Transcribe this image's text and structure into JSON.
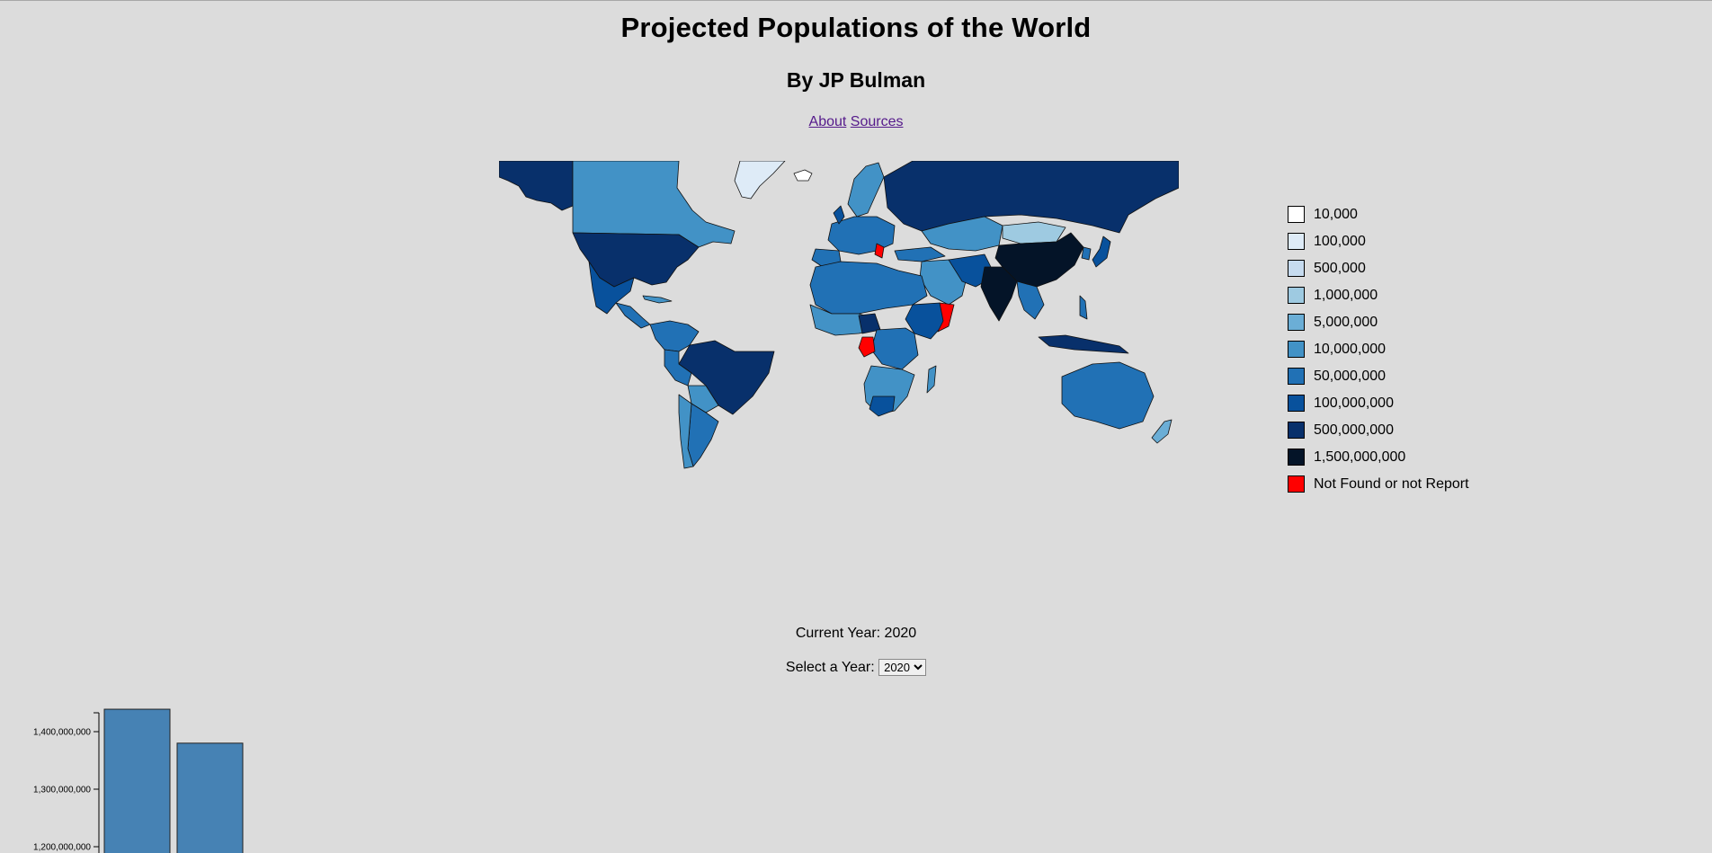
{
  "header": {
    "title": "Projected Populations of the World",
    "byline": "By JP Bulman"
  },
  "nav": {
    "about_label": "About",
    "sources_label": "Sources"
  },
  "map": {
    "legend": [
      {
        "label": "10,000",
        "color": "#ffffff"
      },
      {
        "label": "100,000",
        "color": "#deebf7"
      },
      {
        "label": "500,000",
        "color": "#c6dbef"
      },
      {
        "label": "1,000,000",
        "color": "#9ecae1"
      },
      {
        "label": "5,000,000",
        "color": "#6baed6"
      },
      {
        "label": "10,000,000",
        "color": "#4292c6"
      },
      {
        "label": "50,000,000",
        "color": "#2171b5"
      },
      {
        "label": "100,000,000",
        "color": "#08519c"
      },
      {
        "label": "500,000,000",
        "color": "#08306b"
      },
      {
        "label": "1,500,000,000",
        "color": "#041428"
      },
      {
        "label": "Not Found or not Report",
        "color": "#ff0000"
      }
    ]
  },
  "controls": {
    "current_year_text": "Current Year: 2020",
    "select_label": "Select a Year:",
    "selected_year": "2020"
  },
  "chart_data": {
    "type": "bar",
    "values": [
      1439000000,
      1380000000
    ],
    "yticks": [
      {
        "value": 1400000000,
        "label": "1,400,000,000"
      },
      {
        "value": 1300000000,
        "label": "1,300,000,000"
      },
      {
        "value": 1200000000,
        "label": "1,200,000,000"
      }
    ],
    "bar_color": "#4682b4"
  }
}
